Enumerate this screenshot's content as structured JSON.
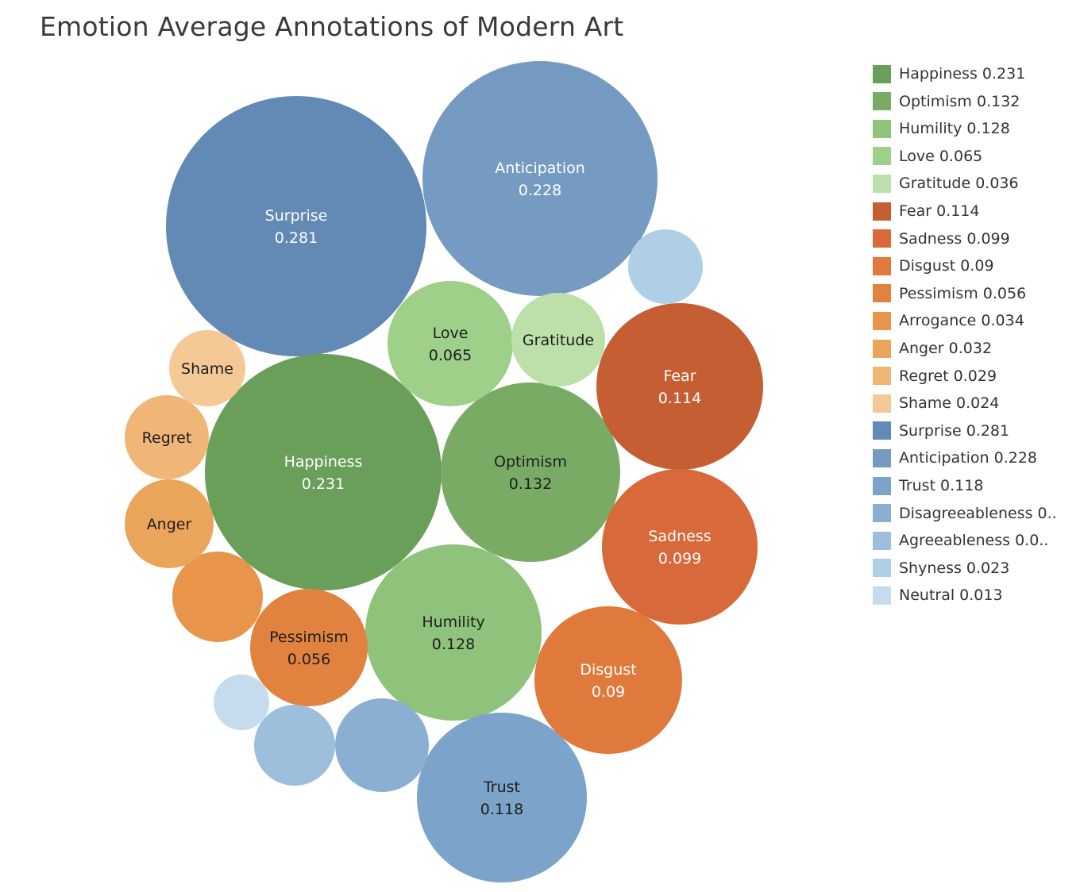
{
  "chart_data": {
    "type": "bubble",
    "title": "Emotion Average Annotations of Modern Art",
    "legend_placement": "right",
    "bubbles": [
      {
        "name": "Surprise",
        "value": 0.281,
        "color": "#6389b5",
        "label_dark": false
      },
      {
        "name": "Anticipation",
        "value": 0.228,
        "color": "#759bc2",
        "label_dark": false
      },
      {
        "name": "Happiness",
        "value": 0.231,
        "color": "#6a9f5a",
        "label_dark": false
      },
      {
        "name": "Optimism",
        "value": 0.132,
        "color": "#7aab64",
        "label_dark": true
      },
      {
        "name": "Humility",
        "value": 0.128,
        "color": "#8fc27a",
        "label_dark": true
      },
      {
        "name": "Love",
        "value": 0.065,
        "color": "#9fd08a",
        "label_dark": true
      },
      {
        "name": "Gratitude",
        "value": 0.036,
        "color": "#bde0aa",
        "label_dark": true
      },
      {
        "name": "Fear",
        "value": 0.114,
        "color": "#c55f33",
        "label_dark": false
      },
      {
        "name": "Sadness",
        "value": 0.099,
        "color": "#d8693a",
        "label_dark": false
      },
      {
        "name": "Disgust",
        "value": 0.09,
        "color": "#e07a3c",
        "label_dark": false
      },
      {
        "name": "Pessimism",
        "value": 0.056,
        "color": "#e2823f",
        "label_dark": true
      },
      {
        "name": "Arrogance",
        "value": 0.034,
        "color": "#e8944a",
        "label_dark": true
      },
      {
        "name": "Anger",
        "value": 0.032,
        "color": "#eba55a",
        "label_dark": true
      },
      {
        "name": "Regret",
        "value": 0.029,
        "color": "#f0b678",
        "label_dark": true
      },
      {
        "name": "Shame",
        "value": 0.024,
        "color": "#f5c996",
        "label_dark": true
      },
      {
        "name": "Trust",
        "value": 0.118,
        "color": "#7ca3c9",
        "label_dark": true
      },
      {
        "name": "Disagreeableness",
        "value": null,
        "color": "#8bafd2",
        "label_dark": true
      },
      {
        "name": "Agreeableness",
        "value": null,
        "color": "#9dbfdc",
        "label_dark": true
      },
      {
        "name": "Shyness",
        "value": 0.023,
        "color": "#afcfe6",
        "label_dark": true
      },
      {
        "name": "Neutral",
        "value": 0.013,
        "color": "#c4dcee",
        "label_dark": true
      }
    ],
    "legend": [
      {
        "label": "Happiness 0.231",
        "color": "#6a9f5a"
      },
      {
        "label": "Optimism 0.132",
        "color": "#7aab64"
      },
      {
        "label": "Humility 0.128",
        "color": "#8fc27a"
      },
      {
        "label": "Love 0.065",
        "color": "#9fd08a"
      },
      {
        "label": "Gratitude 0.036",
        "color": "#bde0aa"
      },
      {
        "label": "Fear 0.114",
        "color": "#c55f33"
      },
      {
        "label": "Sadness 0.099",
        "color": "#d8693a"
      },
      {
        "label": "Disgust 0.09",
        "color": "#e07a3c"
      },
      {
        "label": "Pessimism 0.056",
        "color": "#e2823f"
      },
      {
        "label": "Arrogance 0.034",
        "color": "#e8944a"
      },
      {
        "label": "Anger 0.032",
        "color": "#eba55a"
      },
      {
        "label": "Regret 0.029",
        "color": "#f0b678"
      },
      {
        "label": "Shame 0.024",
        "color": "#f5c996"
      },
      {
        "label": "Surprise 0.281",
        "color": "#6389b5"
      },
      {
        "label": "Anticipation 0.228",
        "color": "#759bc2"
      },
      {
        "label": "Trust 0.118",
        "color": "#7ca3c9"
      },
      {
        "label": "Disagreeableness 0..",
        "color": "#8bafd2"
      },
      {
        "label": "Agreeableness 0.0..",
        "color": "#9dbfdc"
      },
      {
        "label": "Shyness 0.023",
        "color": "#afcfe6"
      },
      {
        "label": "Neutral 0.013",
        "color": "#c4dcee"
      }
    ]
  }
}
